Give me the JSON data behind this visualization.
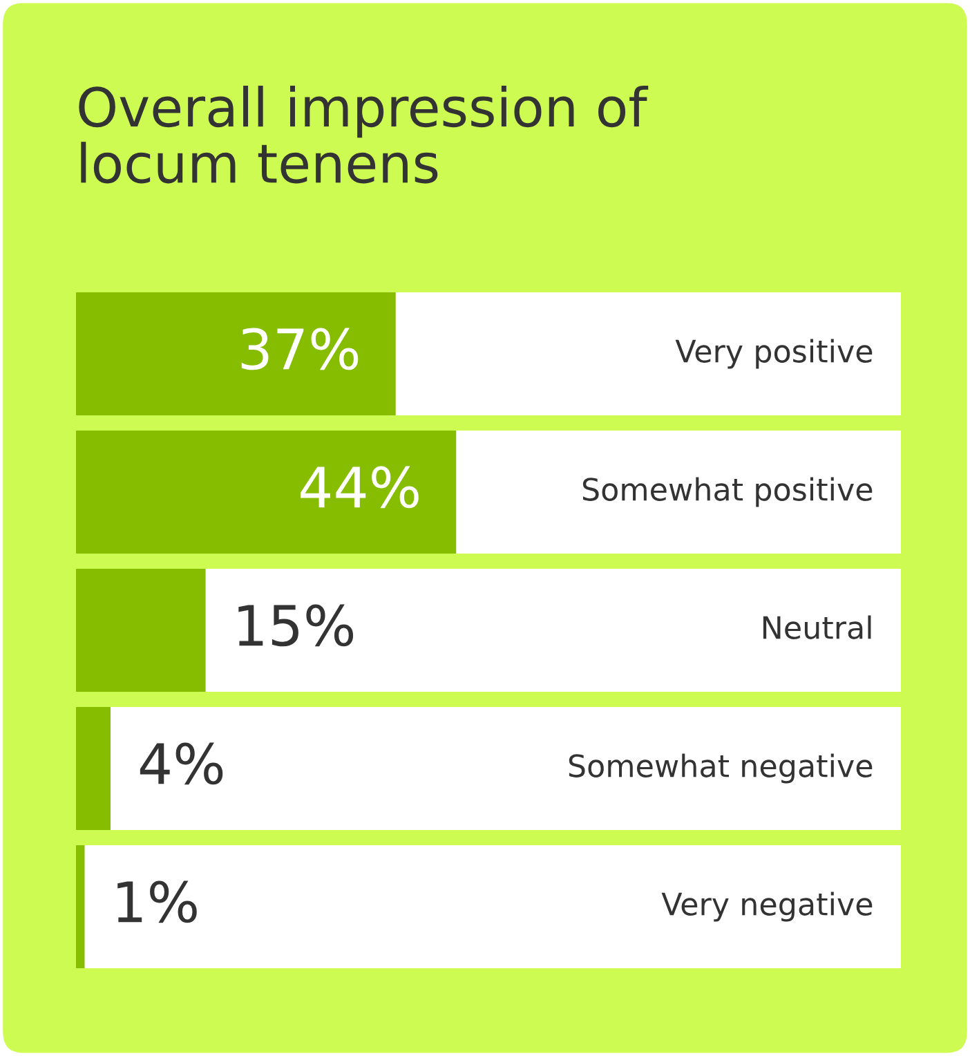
{
  "chart_data": {
    "type": "bar",
    "orientation": "horizontal",
    "title": "Overall impression of locum tenens",
    "categories": [
      "Very positive",
      "Somewhat positive",
      "Neutral",
      "Somewhat negative",
      "Very negative"
    ],
    "values": [
      37,
      44,
      15,
      4,
      1
    ],
    "value_labels": [
      "37%",
      "44%",
      "15%",
      "4%",
      "1%"
    ],
    "color": "#86bd00"
  }
}
